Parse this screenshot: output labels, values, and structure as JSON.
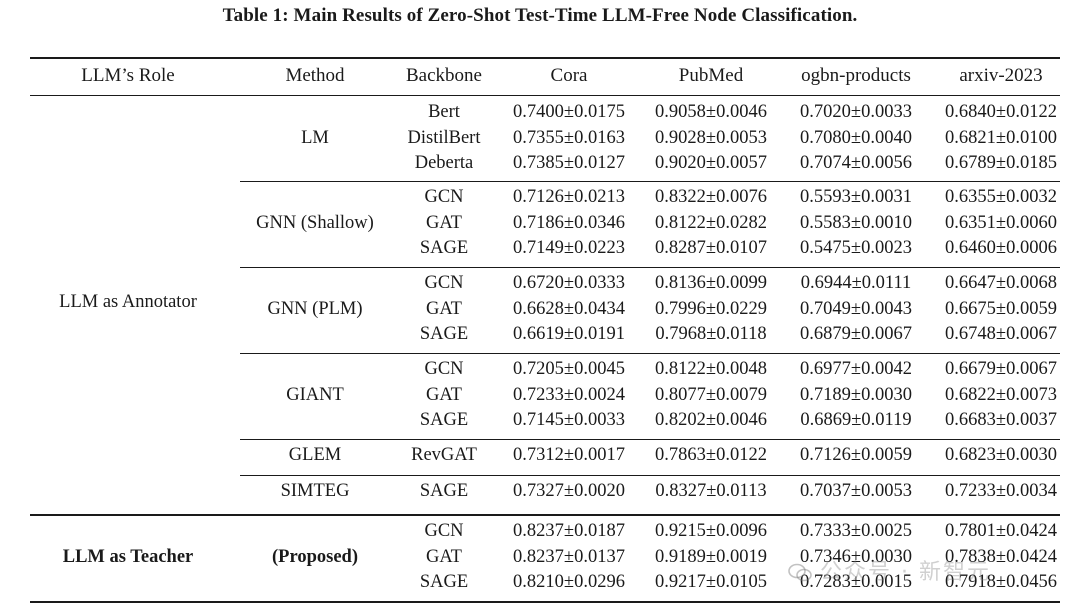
{
  "caption": "Table 1: Main Results of Zero-Shot Test-Time LLM-Free Node Classification.",
  "headers": [
    "LLM’s Role",
    "Method",
    "Backbone",
    "Cora",
    "PubMed",
    "ogbn-products",
    "arxiv-2023"
  ],
  "groups": [
    {
      "role": "LLM as Annotator",
      "bold": false,
      "methods": [
        {
          "name": "LM",
          "rows": [
            {
              "backbone": "Bert",
              "values": [
                "0.7400±0.0175",
                "0.9058±0.0046",
                "0.7020±0.0033",
                "0.6840±0.0122"
              ]
            },
            {
              "backbone": "DistilBert",
              "values": [
                "0.7355±0.0163",
                "0.9028±0.0053",
                "0.7080±0.0040",
                "0.6821±0.0100"
              ]
            },
            {
              "backbone": "Deberta",
              "values": [
                "0.7385±0.0127",
                "0.9020±0.0057",
                "0.7074±0.0056",
                "0.6789±0.0185"
              ]
            }
          ]
        },
        {
          "name": "GNN (Shallow)",
          "rows": [
            {
              "backbone": "GCN",
              "values": [
                "0.7126±0.0213",
                "0.8322±0.0076",
                "0.5593±0.0031",
                "0.6355±0.0032"
              ]
            },
            {
              "backbone": "GAT",
              "values": [
                "0.7186±0.0346",
                "0.8122±0.0282",
                "0.5583±0.0010",
                "0.6351±0.0060"
              ]
            },
            {
              "backbone": "SAGE",
              "values": [
                "0.7149±0.0223",
                "0.8287±0.0107",
                "0.5475±0.0023",
                "0.6460±0.0006"
              ]
            }
          ]
        },
        {
          "name": "GNN (PLM)",
          "rows": [
            {
              "backbone": "GCN",
              "values": [
                "0.6720±0.0333",
                "0.8136±0.0099",
                "0.6944±0.0111",
                "0.6647±0.0068"
              ]
            },
            {
              "backbone": "GAT",
              "values": [
                "0.6628±0.0434",
                "0.7996±0.0229",
                "0.7049±0.0043",
                "0.6675±0.0059"
              ]
            },
            {
              "backbone": "SAGE",
              "values": [
                "0.6619±0.0191",
                "0.7968±0.0118",
                "0.6879±0.0067",
                "0.6748±0.0067"
              ]
            }
          ]
        },
        {
          "name": "GIANT",
          "rows": [
            {
              "backbone": "GCN",
              "values": [
                "0.7205±0.0045",
                "0.8122±0.0048",
                "0.6977±0.0042",
                "0.6679±0.0067"
              ]
            },
            {
              "backbone": "GAT",
              "values": [
                "0.7233±0.0024",
                "0.8077±0.0079",
                "0.7189±0.0030",
                "0.6822±0.0073"
              ]
            },
            {
              "backbone": "SAGE",
              "values": [
                "0.7145±0.0033",
                "0.8202±0.0046",
                "0.6869±0.0119",
                "0.6683±0.0037"
              ]
            }
          ]
        },
        {
          "name": "GLEM",
          "rows": [
            {
              "backbone": "RevGAT",
              "values": [
                "0.7312±0.0017",
                "0.7863±0.0122",
                "0.7126±0.0059",
                "0.6823±0.0030"
              ]
            }
          ]
        },
        {
          "name": "SIMTEG",
          "rows": [
            {
              "backbone": "SAGE",
              "values": [
                "0.7327±0.0020",
                "0.8327±0.0113",
                "0.7037±0.0053",
                "0.7233±0.0034"
              ]
            }
          ]
        }
      ]
    },
    {
      "role": "LLM as Teacher",
      "bold": true,
      "methods": [
        {
          "name": "(Proposed)",
          "rows": [
            {
              "backbone": "GCN",
              "values": [
                "0.8237±0.0187",
                "0.9215±0.0096",
                "0.7333±0.0025",
                "0.7801±0.0424"
              ]
            },
            {
              "backbone": "GAT",
              "values": [
                "0.8237±0.0137",
                "0.9189±0.0019",
                "0.7346±0.0030",
                "0.7838±0.0424"
              ]
            },
            {
              "backbone": "SAGE",
              "values": [
                "0.8210±0.0296",
                "0.9217±0.0105",
                "0.7283±0.0015",
                "0.7918±0.0456"
              ]
            }
          ]
        }
      ]
    }
  ],
  "watermark": "公众号 · 新智元"
}
